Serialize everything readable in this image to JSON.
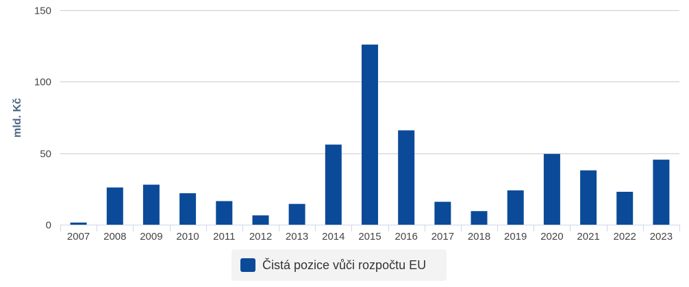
{
  "chart_data": {
    "type": "bar",
    "title": "",
    "xlabel": "",
    "ylabel": "mld. Kč",
    "ylim": [
      0,
      150
    ],
    "yticks": [
      0,
      50,
      100,
      150
    ],
    "grid": true,
    "legend_position": "bottom-center",
    "categories": [
      "2007",
      "2008",
      "2009",
      "2010",
      "2011",
      "2012",
      "2013",
      "2014",
      "2015",
      "2016",
      "2017",
      "2018",
      "2019",
      "2020",
      "2021",
      "2022",
      "2023"
    ],
    "series": [
      {
        "name": "Čistá pozice vůči rozpočtu EU",
        "color": "#0b4a98",
        "values": [
          1.5,
          26,
          28,
          22,
          16.5,
          6.5,
          14.5,
          56,
          126,
          66,
          16,
          9.5,
          24,
          49.5,
          38,
          23,
          45.5
        ]
      }
    ]
  }
}
